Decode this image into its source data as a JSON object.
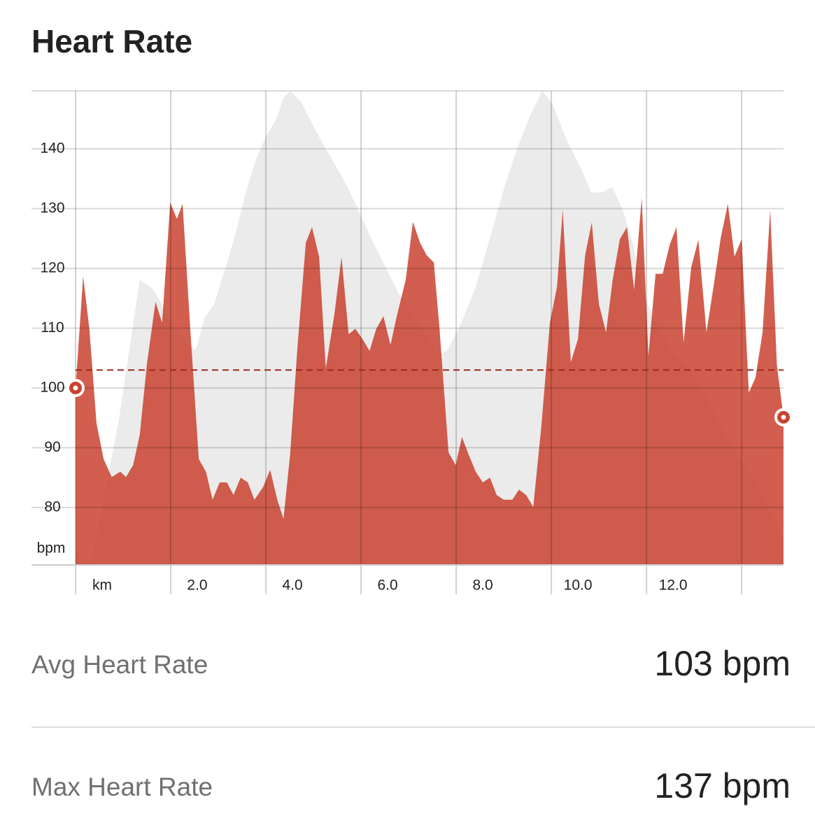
{
  "chart_data": {
    "type": "area",
    "title": "Heart Rate",
    "y_unit": "bpm",
    "x": [
      0,
      0.16,
      0.29,
      0.44,
      0.59,
      0.76,
      0.94,
      1.06,
      1.21,
      1.35,
      1.5,
      1.68,
      1.82,
      1.99,
      2.13,
      2.25,
      2.41,
      2.59,
      2.74,
      2.88,
      3.03,
      3.18,
      3.32,
      3.47,
      3.62,
      3.76,
      3.94,
      4.09,
      4.24,
      4.37,
      4.51,
      4.66,
      4.84,
      4.97,
      5.12,
      5.26,
      5.44,
      5.59,
      5.74,
      5.88,
      6.03,
      6.18,
      6.32,
      6.47,
      6.62,
      6.76,
      6.94,
      7.09,
      7.24,
      7.38,
      7.53,
      7.65,
      7.84,
      7.99,
      8.12,
      8.26,
      8.41,
      8.56,
      8.71,
      8.85,
      9,
      9.18,
      9.32,
      9.47,
      9.62,
      9.79,
      9.97,
      10.12,
      10.24,
      10.41,
      10.56,
      10.71,
      10.85,
      11,
      11.15,
      11.29,
      11.44,
      11.59,
      11.74,
      11.9,
      12.04,
      12.19,
      12.34,
      12.49,
      12.63,
      12.78,
      12.94,
      13.09,
      13.26,
      13.41,
      13.56,
      13.71,
      13.85,
      14,
      14.15,
      14.29,
      14.44,
      14.6,
      14.74,
      14.88
    ],
    "series": [
      {
        "color": "#ebebeb",
        "x": [
          0,
          0.32,
          0.91,
          1.35,
          1.65,
          2.01,
          2.31,
          2.53,
          2.71,
          2.91,
          3.12,
          3.34,
          3.56,
          3.78,
          4.0,
          4.22,
          4.37,
          4.51,
          4.74,
          5.03,
          5.32,
          5.62,
          5.91,
          6.21,
          6.5,
          6.79,
          7.09,
          7.38,
          7.68,
          7.82,
          8.12,
          8.41,
          8.71,
          9.0,
          9.29,
          9.59,
          9.81,
          10.03,
          10.32,
          10.62,
          10.84,
          11.06,
          11.28,
          11.5,
          11.72,
          11.94,
          12.24,
          12.53,
          12.82,
          13.12,
          13.41,
          13.71,
          14.0,
          14.29,
          14.59,
          14.88
        ],
        "values": [
          72.5,
          70.4,
          94.7,
          118.1,
          116.4,
          111.1,
          107.6,
          106.4,
          111.7,
          114,
          119.3,
          125.1,
          132.2,
          138,
          142.1,
          145,
          148.5,
          149.7,
          147.9,
          143.3,
          139.2,
          135.1,
          130.4,
          125.1,
          120.5,
          115.8,
          112.3,
          108.8,
          105.8,
          106.4,
          111.1,
          116.9,
          125.1,
          133.3,
          140.3,
          146.2,
          149.7,
          147.4,
          141.5,
          136.8,
          132.7,
          132.7,
          133.6,
          129.8,
          124,
          115.8,
          109.9,
          106.4,
          104.1,
          100.6,
          95.9,
          91.2,
          87.7,
          84.2,
          79.5,
          74.8
        ]
      },
      {
        "color": "#c9422f",
        "values": [
          100,
          118.7,
          109.9,
          94.1,
          88.1,
          85.1,
          86,
          85.1,
          87.1,
          92.2,
          104,
          114.4,
          110.9,
          131,
          128.3,
          130.8,
          110,
          88.1,
          86,
          81.3,
          84.2,
          84.2,
          82.1,
          85,
          84.2,
          81.3,
          83.4,
          86.3,
          81.3,
          78.1,
          88.9,
          106.4,
          124.3,
          126.9,
          121.9,
          103.3,
          112.3,
          121.9,
          109,
          109.9,
          108.2,
          106.2,
          109.9,
          112,
          107.2,
          112.3,
          118.1,
          127.8,
          124.3,
          122.2,
          121,
          109.9,
          89.2,
          87.1,
          91.8,
          88.9,
          86,
          84.2,
          85,
          82.1,
          81.3,
          81.3,
          83,
          82.1,
          80.1,
          93.6,
          110.9,
          117,
          129.8,
          104.3,
          108.2,
          122.2,
          127.7,
          114,
          109.3,
          118.1,
          124.9,
          126.9,
          116.4,
          131.8,
          105.3,
          119.1,
          119.1,
          124,
          126.9,
          107.6,
          120.2,
          124.8,
          109.3,
          117,
          125.1,
          130.8,
          122,
          124.9,
          99.2,
          101.7,
          109.3,
          129.8,
          103.9,
          95.1
        ],
        "markers": true
      }
    ],
    "reference_line": {
      "value": 103,
      "color": "#9b2a1e"
    },
    "xlim": [
      0,
      14.88
    ],
    "xticks": [
      {
        "value": 0,
        "label": "km"
      },
      {
        "value": 2,
        "label": "2.0"
      },
      {
        "value": 4,
        "label": "4.0"
      },
      {
        "value": 6,
        "label": "6.0"
      },
      {
        "value": 8,
        "label": "8.0"
      },
      {
        "value": 10,
        "label": "10.0"
      },
      {
        "value": 12,
        "label": "12.0"
      },
      {
        "value": 14,
        "label": null
      }
    ],
    "ylim": [
      70.4,
      149.7
    ],
    "yticks": [
      80,
      90,
      100,
      110,
      120,
      130,
      140
    ],
    "grid": true
  },
  "stats": [
    {
      "label": "Avg Heart Rate",
      "value": "103 bpm"
    },
    {
      "label": "Max Heart Rate",
      "value": "137 bpm"
    }
  ]
}
